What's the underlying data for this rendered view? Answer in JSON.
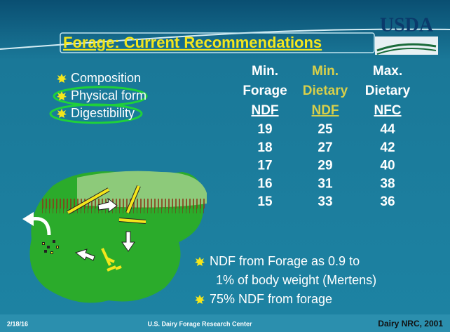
{
  "header": {
    "logo": "USDA",
    "title": "Forage: Current Recommendations"
  },
  "bullets": [
    "Composition",
    "Physical form",
    "Digestibility"
  ],
  "table": {
    "columns": [
      [
        "Min.",
        "Forage",
        "NDF"
      ],
      [
        "Min.",
        "Dietary",
        "NDF"
      ],
      [
        "Max.",
        "Dietary",
        "NFC"
      ]
    ],
    "rows": [
      [
        19,
        25,
        44
      ],
      [
        18,
        27,
        42
      ],
      [
        17,
        29,
        40
      ],
      [
        16,
        31,
        38
      ],
      [
        15,
        33,
        36
      ]
    ]
  },
  "notes": [
    [
      "NDF from Forage as 0.9 to",
      "1% of body weight (Mertens)"
    ],
    [
      "75% NDF from forage"
    ]
  ],
  "footer": {
    "date": "2/18/16",
    "center": "U.S. Dairy Forage Research Center",
    "source": "Dairy NRC, 2001"
  }
}
